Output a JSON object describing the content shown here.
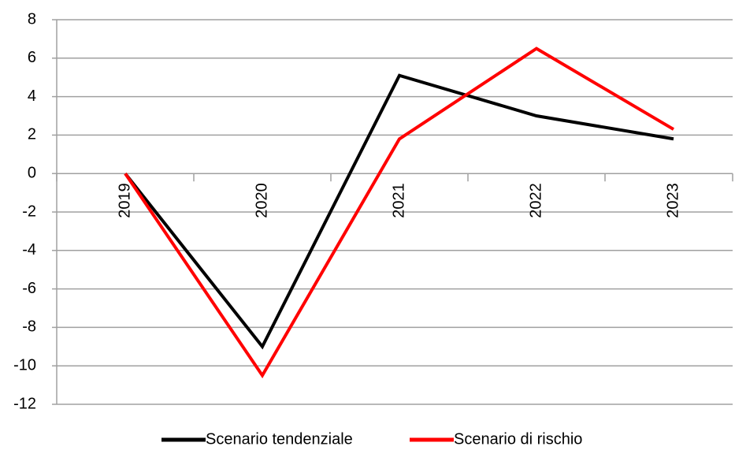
{
  "chart_data": {
    "type": "line",
    "categories": [
      "2019",
      "2020",
      "2021",
      "2022",
      "2023"
    ],
    "series": [
      {
        "name": "Scenario tendenziale",
        "color": "#000000",
        "values": [
          0,
          -9,
          5.1,
          3,
          1.8
        ]
      },
      {
        "name": "Scenario di rischio",
        "color": "#ff0000",
        "values": [
          0,
          -10.5,
          1.8,
          6.5,
          2.3
        ]
      }
    ],
    "ylim": [
      -12,
      8
    ],
    "yticks": [
      -12,
      -10,
      -8,
      -6,
      -4,
      -2,
      0,
      2,
      4,
      6,
      8
    ],
    "grid": true,
    "legend": "bottom"
  }
}
